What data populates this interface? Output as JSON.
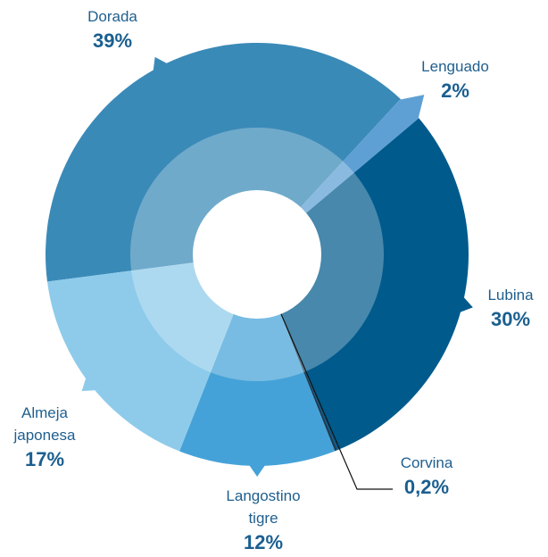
{
  "chart_data": {
    "type": "pie",
    "categories": [
      "Dorada",
      "Lenguado",
      "Lubina",
      "Corvina",
      "Langostino tigre",
      "Almeja japonesa"
    ],
    "values": [
      39,
      2,
      30,
      0.2,
      12,
      17
    ],
    "value_labels": [
      "39%",
      "2%",
      "30%",
      "0,2%",
      "12%",
      "17%"
    ],
    "colors": [
      "#3a8ab8",
      "#5fa0d4",
      "#005a8c",
      "#1d3d55",
      "#45a2d8",
      "#8ecbea"
    ]
  }
}
